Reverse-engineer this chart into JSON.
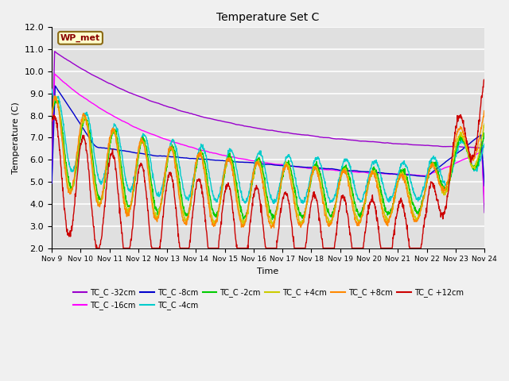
{
  "title": "Temperature Set C",
  "xlabel": "Time",
  "ylabel": "Temperature (C)",
  "ylim": [
    2.0,
    12.0
  ],
  "yticks": [
    2.0,
    3.0,
    4.0,
    5.0,
    6.0,
    7.0,
    8.0,
    9.0,
    10.0,
    11.0,
    12.0
  ],
  "xtick_labels": [
    "Nov 9",
    "Nov 10",
    "Nov 11",
    "Nov 12",
    "Nov 13",
    "Nov 14",
    "Nov 15",
    "Nov 16",
    "Nov 17",
    "Nov 18",
    "Nov 19",
    "Nov 20",
    "Nov 21",
    "Nov 22",
    "Nov 23",
    "Nov 24"
  ],
  "wp_met_label": "WP_met",
  "series": [
    {
      "label": "TC_C -32cm",
      "color": "#9900cc"
    },
    {
      "label": "TC_C -16cm",
      "color": "#ff00ff"
    },
    {
      "label": "TC_C -8cm",
      "color": "#0000cc"
    },
    {
      "label": "TC_C -4cm",
      "color": "#00cccc"
    },
    {
      "label": "TC_C -2cm",
      "color": "#00cc00"
    },
    {
      "label": "TC_C +4cm",
      "color": "#cccc00"
    },
    {
      "label": "TC_C +8cm",
      "color": "#ff8800"
    },
    {
      "label": "TC_C +12cm",
      "color": "#cc0000"
    }
  ],
  "background_color": "#e0e0e0",
  "fig_facecolor": "#f0f0f0",
  "grid_color": "#ffffff"
}
